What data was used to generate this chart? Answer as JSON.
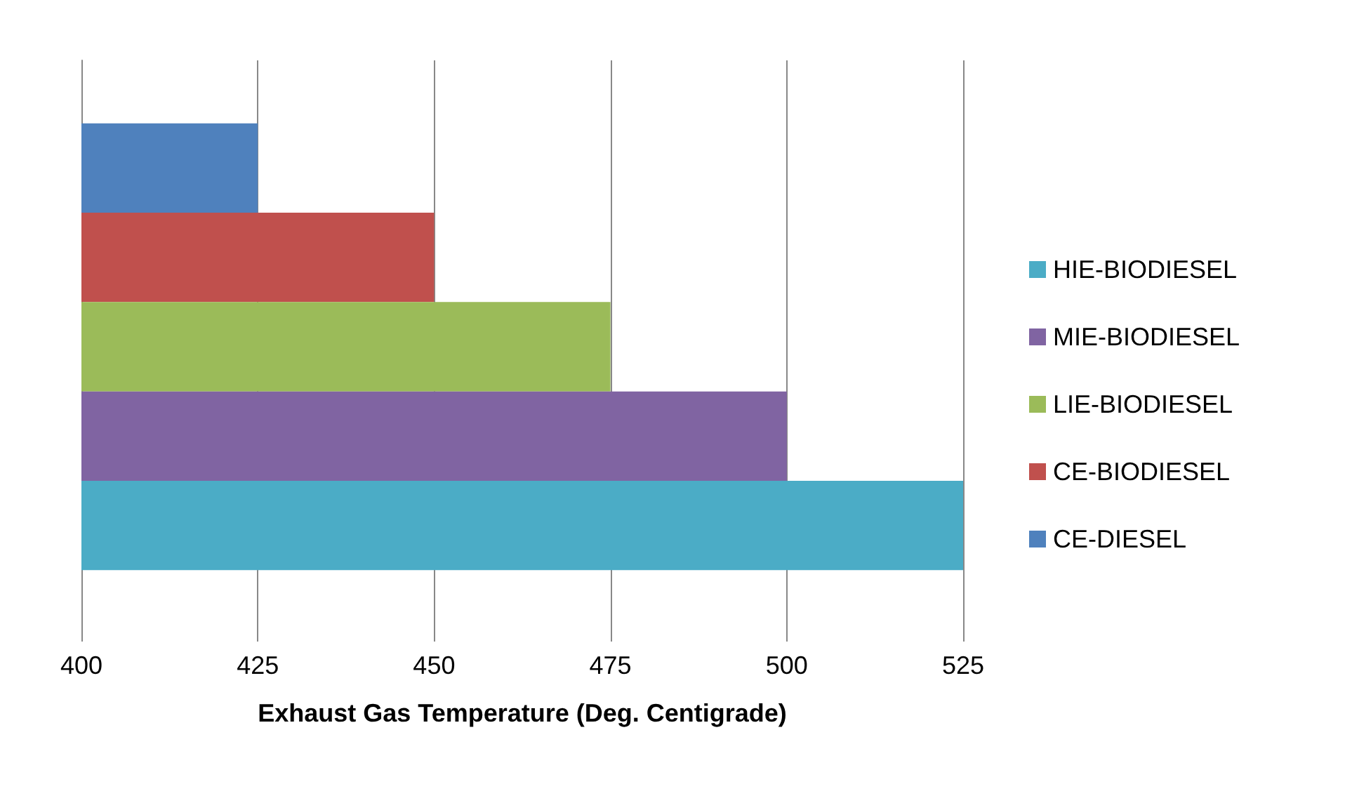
{
  "chart_data": {
    "type": "bar",
    "orientation": "horizontal",
    "xlabel": "Exhaust Gas Temperature (Deg. Centigrade)",
    "categories": [
      null
    ],
    "series": [
      {
        "name": "CE-DIESEL",
        "color": "#4f81bd",
        "values": [
          425
        ]
      },
      {
        "name": "CE-BIODIESEL",
        "color": "#c0504d",
        "values": [
          450
        ]
      },
      {
        "name": "LIE-BIODIESEL",
        "color": "#9bbb59",
        "values": [
          475
        ]
      },
      {
        "name": "MIE-BIODIESEL",
        "color": "#8064a2",
        "values": [
          500
        ]
      },
      {
        "name": "HIE-BIODIESEL",
        "color": "#4bacc6",
        "values": [
          525
        ]
      }
    ],
    "xlim": [
      400,
      525
    ],
    "xticks": [
      400,
      425,
      450,
      475,
      500,
      525
    ],
    "grid": "x",
    "legend": "right"
  }
}
